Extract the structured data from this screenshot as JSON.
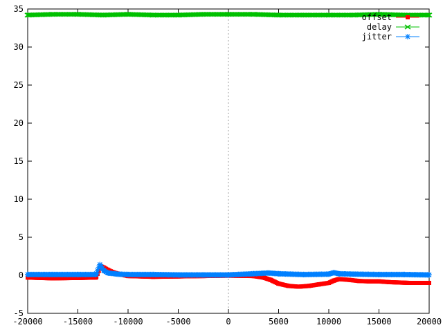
{
  "chart_data": {
    "type": "line",
    "title": "",
    "xlabel": "",
    "ylabel": "",
    "xlim": [
      -20000,
      20000
    ],
    "ylim": [
      -5,
      35
    ],
    "grid": false,
    "zero_axis_x": true,
    "legend_position": "top-right",
    "x_ticks": [
      {
        "value": -20000,
        "label": "-20000"
      },
      {
        "value": -15000,
        "label": "-15000"
      },
      {
        "value": -10000,
        "label": "-10000"
      },
      {
        "value": -5000,
        "label": "-5000"
      },
      {
        "value": 0,
        "label": "0"
      },
      {
        "value": 5000,
        "label": "5000"
      },
      {
        "value": 10000,
        "label": "10000"
      },
      {
        "value": 15000,
        "label": "15000"
      },
      {
        "value": 20000,
        "label": "20000"
      }
    ],
    "y_ticks": [
      {
        "value": -5,
        "label": "-5"
      },
      {
        "value": 0,
        "label": "0"
      },
      {
        "value": 5,
        "label": "5"
      },
      {
        "value": 10,
        "label": "10"
      },
      {
        "value": 15,
        "label": "15"
      },
      {
        "value": 20,
        "label": "20"
      },
      {
        "value": 25,
        "label": "25"
      },
      {
        "value": 30,
        "label": "30"
      },
      {
        "value": 35,
        "label": "35"
      }
    ],
    "series": [
      {
        "name": "offset",
        "color": "#ff0000",
        "marker": "square",
        "x": [
          -20000,
          -17500,
          -15000,
          -13200,
          -12700,
          -12400,
          -12000,
          -11500,
          -11000,
          -10000,
          -7500,
          -5000,
          -2500,
          0,
          2500,
          3500,
          4200,
          5000,
          6000,
          7000,
          8000,
          9000,
          10000,
          10500,
          11000,
          12000,
          13000,
          14000,
          15000,
          16000,
          17000,
          18000,
          19000,
          20000
        ],
        "y": [
          -0.3,
          -0.4,
          -0.35,
          -0.3,
          1.2,
          1.0,
          0.7,
          0.4,
          0.2,
          -0.1,
          -0.2,
          -0.15,
          -0.1,
          -0.05,
          -0.1,
          -0.3,
          -0.6,
          -1.1,
          -1.4,
          -1.5,
          -1.4,
          -1.2,
          -1.0,
          -0.7,
          -0.5,
          -0.6,
          -0.75,
          -0.8,
          -0.8,
          -0.9,
          -0.95,
          -1.0,
          -1.0,
          -1.0
        ]
      },
      {
        "name": "delay",
        "color": "#00c000",
        "marker": "x",
        "x": [
          -20000,
          -17500,
          -15000,
          -12500,
          -10000,
          -7500,
          -5000,
          -2500,
          0,
          2500,
          5000,
          7500,
          10000,
          12500,
          15000,
          17500,
          20000
        ],
        "y": [
          34.2,
          34.3,
          34.3,
          34.2,
          34.3,
          34.2,
          34.2,
          34.3,
          34.3,
          34.3,
          34.2,
          34.2,
          34.2,
          34.2,
          34.3,
          34.2,
          34.2
        ]
      },
      {
        "name": "jitter",
        "color": "#0080ff",
        "marker": "star",
        "x": [
          -20000,
          -17500,
          -15000,
          -13200,
          -12800,
          -12400,
          -12000,
          -11000,
          -10000,
          -7500,
          -5000,
          -2500,
          0,
          2500,
          4000,
          5000,
          7500,
          10000,
          10500,
          11000,
          12500,
          15000,
          17500,
          20000
        ],
        "y": [
          0.1,
          0.1,
          0.1,
          0.1,
          1.4,
          0.6,
          0.3,
          0.15,
          0.1,
          0.1,
          0.05,
          0.05,
          0.05,
          0.2,
          0.3,
          0.2,
          0.1,
          0.15,
          0.35,
          0.2,
          0.15,
          0.1,
          0.1,
          0.05
        ]
      }
    ]
  }
}
